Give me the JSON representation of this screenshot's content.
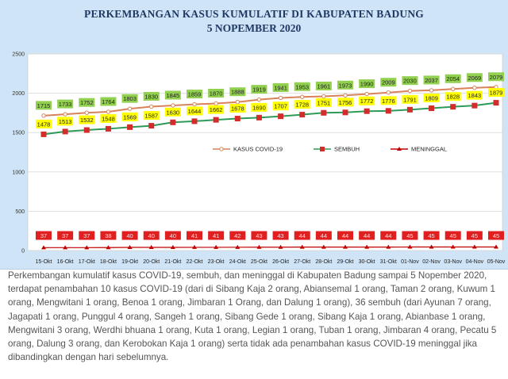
{
  "chart_data": {
    "type": "line",
    "title": "PERKEMBANGAN KASUS KUMULATIF DI KABUPATEN BADUNG",
    "subtitle": "5 NOPEMBER 2020",
    "categories": [
      "15-Okt",
      "16-Okt",
      "17-Okt",
      "18-Okt",
      "19-Okt",
      "20-Okt",
      "21-Okt",
      "22-Okt",
      "23-Okt",
      "24-Okt",
      "25-Okt",
      "26-Okt",
      "27-Okt",
      "28-Okt",
      "29-Okt",
      "30-Okt",
      "31-Okt",
      "01-Nov",
      "02-Nov",
      "03-Nov",
      "04-Nov",
      "05-Nov"
    ],
    "ylim": [
      0,
      2500
    ],
    "yticks": [
      0,
      500,
      1000,
      1500,
      2000,
      2500
    ],
    "grid": true,
    "legend_position": "top-center",
    "series": [
      {
        "name": "KASUS COVID-19",
        "color": "#d9825b",
        "label_bg": "#92d050",
        "marker": "circle",
        "values": [
          1715,
          1733,
          1752,
          1764,
          1803,
          1830,
          1845,
          1859,
          1870,
          1888,
          1919,
          1941,
          1953,
          1961,
          1973,
          1990,
          2009,
          2030,
          2037,
          2054,
          2069,
          2079
        ]
      },
      {
        "name": "SEMBUH",
        "color": "#2e9a57",
        "label_bg": "#ffff00",
        "marker": "square",
        "values": [
          1478,
          1513,
          1532,
          1548,
          1569,
          1587,
          1630,
          1644,
          1662,
          1678,
          1690,
          1707,
          1728,
          1751,
          1756,
          1772,
          1776,
          1791,
          1809,
          1828,
          1843,
          1879
        ]
      },
      {
        "name": "MENINGGAL",
        "color": "#c00000",
        "label_bg": "#e02020",
        "marker": "triangle",
        "values": [
          37,
          37,
          37,
          38,
          40,
          40,
          40,
          41,
          41,
          42,
          43,
          43,
          44,
          44,
          44,
          44,
          44,
          45,
          45,
          45,
          45,
          45
        ]
      }
    ]
  },
  "caption": "Perkembangan kumulatif kasus COVID-19, sembuh, dan meninggal di Kabupaten Badung sampai 5 Nopember 2020, terdapat penambahan 10 kasus COVID-19 (dari di Sibang Kaja 2 orang, Abiansemal 1 orang, Taman 2 orang, Kuwum 1 orang, Mengwitani 1 orang, Benoa 1 orang, Jimbaran 1 Orang, dan Dalung 1 orang), 36 sembuh (dari Ayunan 7 orang, Jagapati 1 orang, Punggul 4 orang, Sangeh 1 orang, Sibang Gede 1 orang, Sibang Kaja 1 orang, Abianbase 1 orang, Mengwitani 3 orang, Werdhi bhuana 1 orang, Kuta 1 orang, Legian 1 orang, Tuban 1 orang, Jimbaran 4 orang, Pecatu 5 orang, Dalung 3 orang, dan Kerobokan Kaja 1 orang) serta tidak ada penambahan kasus COVID-19 meninggal jika dibandingkan dengan hari sebelumnya."
}
